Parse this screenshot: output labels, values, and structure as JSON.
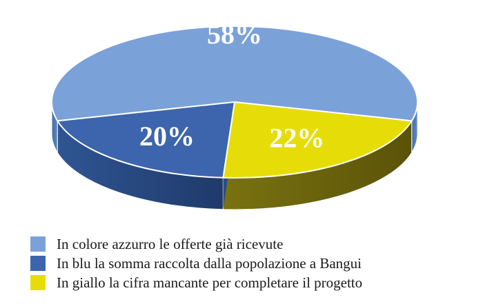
{
  "chart_data": {
    "type": "pie",
    "style": "3d",
    "slices": [
      {
        "label": "In colore azzurro le offerte già ricevute",
        "value": 58,
        "value_label": "58%",
        "color": "#7ba1d9"
      },
      {
        "label": "In blu la somma raccolta dalla popolazione a Bangui",
        "value": 20,
        "value_label": "20%",
        "color": "#3d65ad"
      },
      {
        "label": "In giallo la cifra mancante per completare il progetto",
        "value": 22,
        "value_label": "22%",
        "color": "#e6dd08"
      }
    ],
    "legend_position": "bottom-left"
  }
}
